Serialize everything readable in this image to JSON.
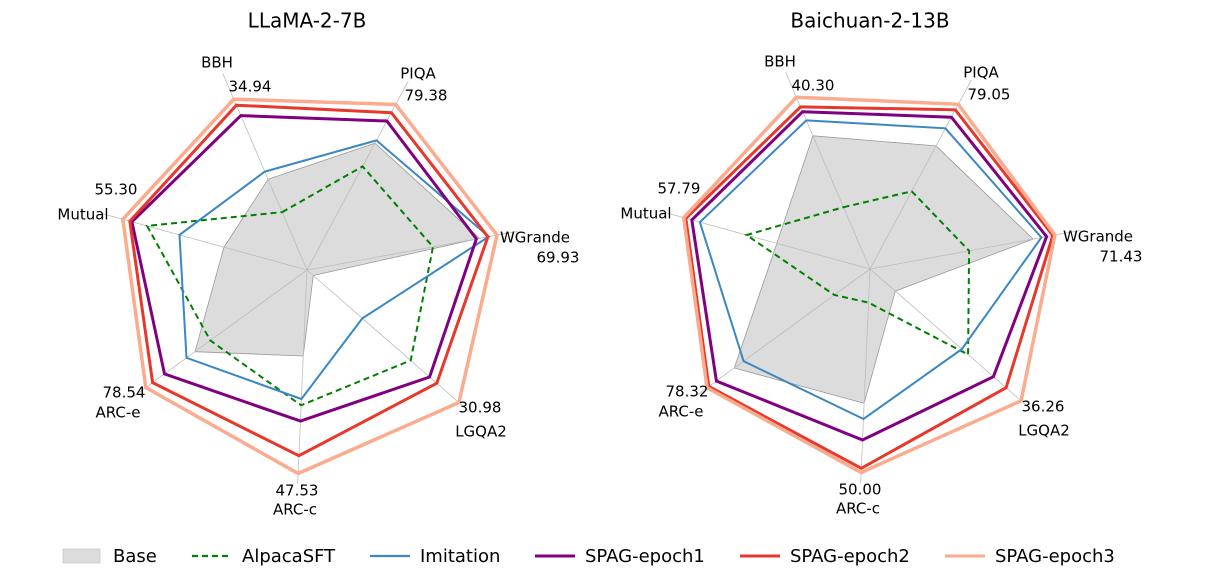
{
  "chart_data": [
    {
      "type": "radar",
      "title": "LLaMA-2-7B",
      "axes": [
        "BBH",
        "PIQA",
        "WGrande",
        "LGQA2",
        "ARC-c",
        "ARC-e",
        "Mutual"
      ],
      "axis_max_labels": [
        "34.94",
        "79.38",
        "69.93",
        "30.98",
        "47.53",
        "78.54",
        "55.30"
      ],
      "scale": "normalized per axis (0 = center, 1 = outer grid)",
      "grid": true,
      "series": [
        {
          "name": "Base",
          "values": [
            0.47,
            0.685,
            0.835,
            0.04,
            0.41,
            0.66,
            0.41
          ]
        },
        {
          "name": "AlpacaSFT",
          "values": [
            0.3,
            0.56,
            0.61,
            0.655,
            0.645,
            0.57,
            0.79
          ]
        },
        {
          "name": "Imitation",
          "values": [
            0.51,
            0.7,
            0.88,
            0.35,
            0.615,
            0.71,
            0.63
          ]
        },
        {
          "name": "SPAG-epoch1",
          "values": [
            0.8,
            0.805,
            0.82,
            0.775,
            0.72,
            0.84,
            0.865
          ]
        },
        {
          "name": "SPAG-epoch2",
          "values": [
            0.854,
            0.85,
            0.876,
            0.82,
            0.885,
            0.91,
            0.875
          ]
        },
        {
          "name": "SPAG-epoch3",
          "values": [
            0.885,
            0.894,
            0.92,
            0.96,
            0.97,
            0.95,
            0.91
          ]
        }
      ]
    },
    {
      "type": "radar",
      "title": "Baichuan-2-13B",
      "axes": [
        "BBH",
        "PIQA",
        "WGrande",
        "LGQA2",
        "ARC-c",
        "ARC-e",
        "Mutual"
      ],
      "axis_max_labels": [
        "40.30",
        "79.05",
        "71.43",
        "36.26",
        "50.00",
        "78.32",
        "57.79"
      ],
      "scale": "normalized per axis (0 = center, 1 = outer grid)",
      "grid": true,
      "series": [
        {
          "name": "Base",
          "values": [
            0.69,
            0.665,
            0.79,
            0.16,
            0.64,
            0.8,
            0.46
          ]
        },
        {
          "name": "AlpacaSFT",
          "values": [
            0.32,
            0.42,
            0.48,
            0.62,
            0.16,
            0.21,
            0.61
          ]
        },
        {
          "name": "Imitation",
          "values": [
            0.77,
            0.76,
            0.83,
            0.58,
            0.715,
            0.745,
            0.84
          ]
        },
        {
          "name": "SPAG-epoch1",
          "values": [
            0.815,
            0.82,
            0.855,
            0.78,
            0.815,
            0.905,
            0.88
          ]
        },
        {
          "name": "SPAG-epoch2",
          "values": [
            0.84,
            0.86,
            0.885,
            0.86,
            0.95,
            0.95,
            0.91
          ]
        },
        {
          "name": "SPAG-epoch3",
          "values": [
            0.89,
            0.89,
            0.895,
            0.955,
            0.97,
            0.96,
            0.92
          ]
        }
      ]
    }
  ],
  "legend": {
    "placement": "bottom",
    "items": [
      {
        "name": "Base",
        "color": "#dcdcdc",
        "style": "fill"
      },
      {
        "name": "AlpacaSFT",
        "color": "#008000",
        "style": "dashed"
      },
      {
        "name": "Imitation",
        "color": "#3a87c3",
        "style": "solid"
      },
      {
        "name": "SPAG-epoch1",
        "color": "#800080",
        "style": "solid"
      },
      {
        "name": "SPAG-epoch2",
        "color": "#e8382c",
        "style": "solid"
      },
      {
        "name": "SPAG-epoch3",
        "color": "#fbab8e",
        "style": "solid"
      }
    ]
  }
}
